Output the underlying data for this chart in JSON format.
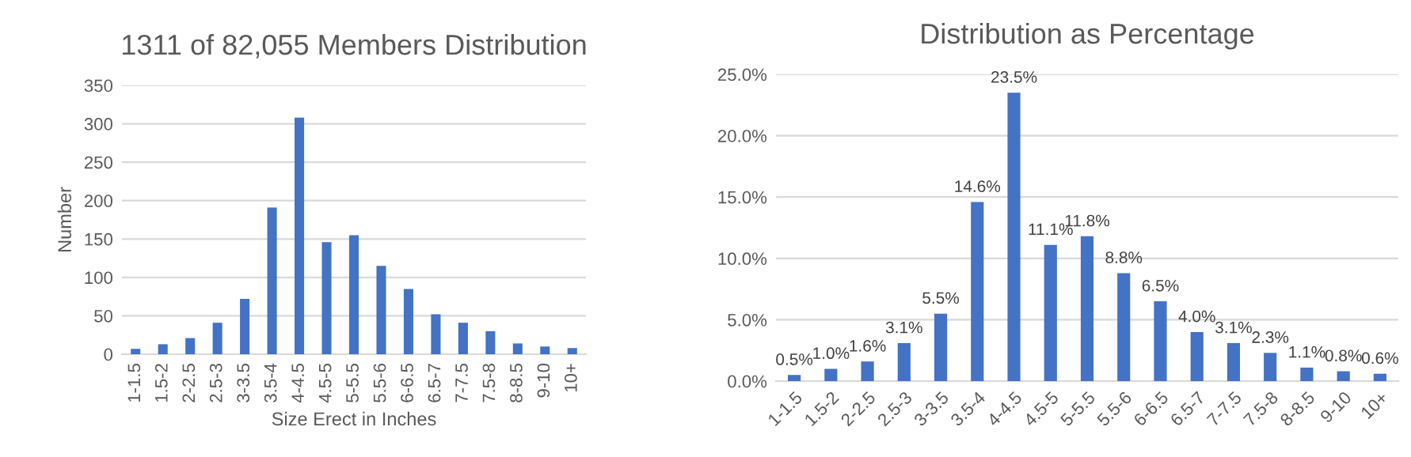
{
  "chart_data": [
    {
      "type": "bar",
      "title": "1311 of 82,055 Members Distribution",
      "xlabel": "Size Erect in Inches",
      "ylabel": "Number",
      "categories": [
        "1-1.5",
        "1.5-2",
        "2-2.5",
        "2.5-3",
        "3-3.5",
        "3.5-4",
        "4-4.5",
        "4.5-5",
        "5-5.5",
        "5.5-6",
        "6-6.5",
        "6.5-7",
        "7-7.5",
        "7.5-8",
        "8-8.5",
        "9-10",
        "10+"
      ],
      "values": [
        7,
        13,
        21,
        41,
        72,
        191,
        308,
        146,
        155,
        115,
        85,
        52,
        41,
        30,
        14,
        10,
        8
      ],
      "color": "#4472c4",
      "ylim": [
        0,
        350
      ],
      "yticks": [
        0,
        50,
        100,
        150,
        200,
        250,
        300,
        350
      ],
      "grid": "y",
      "legend": false
    },
    {
      "type": "bar",
      "title": "Distribution as Percentage",
      "categories": [
        "1-1.5",
        "1.5-2",
        "2-2.5",
        "2.5-3",
        "3-3.5",
        "3.5-4",
        "4-4.5",
        "4.5-5",
        "5-5.5",
        "5.5-6",
        "6-6.5",
        "6.5-7",
        "7-7.5",
        "7.5-8",
        "8-8.5",
        "9-10",
        "10+"
      ],
      "values": [
        0.5,
        1.0,
        1.6,
        3.1,
        5.5,
        14.6,
        23.5,
        11.1,
        11.8,
        8.8,
        6.5,
        4.0,
        3.1,
        2.3,
        1.1,
        0.8,
        0.6
      ],
      "value_labels": [
        "0.5%",
        "1.0%",
        "1.6%",
        "3.1%",
        "5.5%",
        "14.6%",
        "23.5%",
        "11.1%",
        "11.8%",
        "8.8%",
        "6.5%",
        "4.0%",
        "3.1%",
        "2.3%",
        "1.1%",
        "0.8%",
        "0.6%"
      ],
      "color": "#4472c4",
      "ylim": [
        0,
        25
      ],
      "yticks": [
        {
          "value": 0,
          "label": "0.0%"
        },
        {
          "value": 5,
          "label": "5.0%"
        },
        {
          "value": 10,
          "label": "10.0%"
        },
        {
          "value": 15,
          "label": "15.0%"
        },
        {
          "value": 20,
          "label": "20.0%"
        },
        {
          "value": 25,
          "label": "25.0%"
        }
      ],
      "grid": "y",
      "legend": false
    }
  ]
}
